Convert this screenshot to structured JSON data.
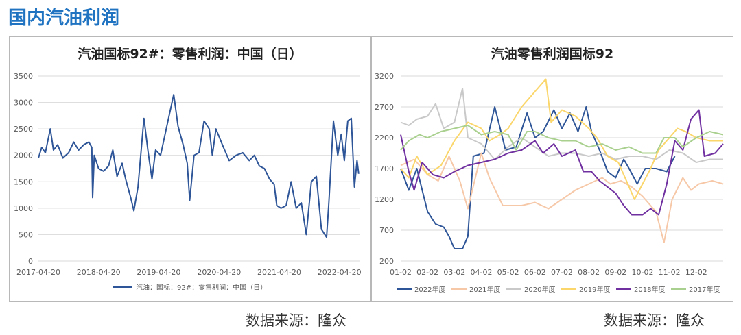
{
  "page": {
    "section_title": "国内汽油利润",
    "source_left": "数据来源：隆众",
    "source_right": "数据来源：隆众"
  },
  "chart_data": [
    {
      "type": "line",
      "title": "汽油国标92#：零售利润：中国（日）",
      "ylim": [
        0,
        3500
      ],
      "yticks": [
        "0",
        "500",
        "1000",
        "1500",
        "2000",
        "2500",
        "3000",
        "3500"
      ],
      "xticks": [
        "2017-04-20",
        "2018-04-20",
        "2019-04-20",
        "2020-04-20",
        "2021-04-20",
        "2022-04-20"
      ],
      "grid": true,
      "legend": "bottom",
      "series": [
        {
          "name": "汽油：国标：92#：零售利润：中国（日）",
          "color": "#2e5597",
          "points": [
            [
              "2017-04-20",
              1950
            ],
            [
              "2017-05-10",
              2150
            ],
            [
              "2017-06-01",
              2050
            ],
            [
              "2017-07-01",
              2500
            ],
            [
              "2017-07-20",
              2100
            ],
            [
              "2017-08-15",
              2200
            ],
            [
              "2017-09-15",
              1950
            ],
            [
              "2017-10-20",
              2050
            ],
            [
              "2017-11-20",
              2250
            ],
            [
              "2017-12-20",
              2100
            ],
            [
              "2018-01-20",
              2200
            ],
            [
              "2018-02-20",
              2250
            ],
            [
              "2018-03-10",
              2150
            ],
            [
              "2018-03-15",
              1200
            ],
            [
              "2018-03-25",
              2000
            ],
            [
              "2018-04-20",
              1750
            ],
            [
              "2018-05-20",
              1700
            ],
            [
              "2018-06-20",
              1800
            ],
            [
              "2018-07-15",
              2100
            ],
            [
              "2018-08-10",
              1600
            ],
            [
              "2018-09-10",
              1850
            ],
            [
              "2018-10-01",
              1550
            ],
            [
              "2018-11-01",
              1200
            ],
            [
              "2018-11-20",
              950
            ],
            [
              "2018-12-15",
              1400
            ],
            [
              "2019-01-20",
              2700
            ],
            [
              "2019-02-15",
              2050
            ],
            [
              "2019-03-10",
              1550
            ],
            [
              "2019-04-01",
              2100
            ],
            [
              "2019-05-01",
              2000
            ],
            [
              "2019-06-15",
              2650
            ],
            [
              "2019-07-20",
              3150
            ],
            [
              "2019-08-15",
              2550
            ],
            [
              "2019-09-15",
              2200
            ],
            [
              "2019-10-10",
              1850
            ],
            [
              "2019-10-25",
              1150
            ],
            [
              "2019-11-20",
              2000
            ],
            [
              "2019-12-20",
              2050
            ],
            [
              "2020-01-20",
              2650
            ],
            [
              "2020-02-20",
              2500
            ],
            [
              "2020-03-10",
              2000
            ],
            [
              "2020-04-01",
              2500
            ],
            [
              "2020-05-10",
              2200
            ],
            [
              "2020-06-20",
              1900
            ],
            [
              "2020-08-01",
              2000
            ],
            [
              "2020-09-10",
              2050
            ],
            [
              "2020-10-20",
              1900
            ],
            [
              "2020-11-20",
              2000
            ],
            [
              "2020-12-20",
              1800
            ],
            [
              "2021-01-20",
              1750
            ],
            [
              "2021-02-20",
              1550
            ],
            [
              "2021-03-20",
              1450
            ],
            [
              "2021-04-05",
              1050
            ],
            [
              "2021-05-01",
              1000
            ],
            [
              "2021-06-01",
              1050
            ],
            [
              "2021-07-01",
              1500
            ],
            [
              "2021-08-01",
              1000
            ],
            [
              "2021-09-01",
              1100
            ],
            [
              "2021-10-01",
              500
            ],
            [
              "2021-11-01",
              1500
            ],
            [
              "2021-12-01",
              1600
            ],
            [
              "2022-01-01",
              600
            ],
            [
              "2022-02-01",
              450
            ],
            [
              "2022-02-15",
              1100
            ],
            [
              "2022-03-15",
              2650
            ],
            [
              "2022-04-10",
              2000
            ],
            [
              "2022-05-01",
              2400
            ],
            [
              "2022-05-20",
              1900
            ],
            [
              "2022-06-10",
              2650
            ],
            [
              "2022-07-01",
              2700
            ],
            [
              "2022-07-20",
              1400
            ],
            [
              "2022-08-05",
              1900
            ],
            [
              "2022-08-15",
              1650
            ]
          ]
        }
      ]
    },
    {
      "type": "line",
      "title": "汽油零售利润国标92",
      "ylim": [
        200,
        3200
      ],
      "yticks": [
        "200",
        "700",
        "1200",
        "1700",
        "2200",
        "2700",
        "3200"
      ],
      "xticks": [
        "01-02",
        "02-02",
        "03-02",
        "04-02",
        "05-02",
        "06-02",
        "07-02",
        "08-02",
        "09-02",
        "10-02",
        "11-02",
        "12-02"
      ],
      "grid": true,
      "legend": "bottom",
      "series": [
        {
          "name": "2022年度",
          "color": "#2e5597",
          "values": [
            [
              1,
              1700
            ],
            [
              1.3,
              1350
            ],
            [
              1.6,
              1700
            ],
            [
              2,
              1000
            ],
            [
              2.3,
              800
            ],
            [
              2.6,
              750
            ],
            [
              2.8,
              600
            ],
            [
              3,
              400
            ],
            [
              3.3,
              400
            ],
            [
              3.5,
              600
            ],
            [
              3.7,
              1900
            ],
            [
              4.1,
              1950
            ],
            [
              4.5,
              2700
            ],
            [
              4.9,
              2000
            ],
            [
              5.3,
              2050
            ],
            [
              5.7,
              2600
            ],
            [
              6,
              2200
            ],
            [
              6.3,
              2300
            ],
            [
              6.7,
              2650
            ],
            [
              7,
              2350
            ],
            [
              7.3,
              2600
            ],
            [
              7.6,
              2300
            ],
            [
              7.9,
              2700
            ],
            [
              8.1,
              2300
            ],
            [
              8.4,
              2000
            ],
            [
              8.7,
              1650
            ],
            [
              9,
              1550
            ],
            [
              9.3,
              1850
            ],
            [
              9.5,
              1700
            ],
            [
              9.8,
              1450
            ],
            [
              10.1,
              1700
            ],
            [
              10.5,
              1700
            ],
            [
              10.9,
              1650
            ],
            [
              11.2,
              1900
            ]
          ]
        },
        {
          "name": "2021年度",
          "color": "#f6c8a8",
          "values": [
            [
              1,
              1750
            ],
            [
              1.5,
              1850
            ],
            [
              2,
              1600
            ],
            [
              2.4,
              1500
            ],
            [
              2.8,
              1900
            ],
            [
              3.2,
              1500
            ],
            [
              3.5,
              1050
            ],
            [
              4,
              1950
            ],
            [
              4.3,
              1550
            ],
            [
              4.8,
              1100
            ],
            [
              5.5,
              1100
            ],
            [
              6,
              1150
            ],
            [
              6.5,
              1050
            ],
            [
              7,
              1200
            ],
            [
              7.5,
              1350
            ],
            [
              8,
              1450
            ],
            [
              8.5,
              1550
            ],
            [
              8.8,
              1450
            ],
            [
              9.2,
              1500
            ],
            [
              9.6,
              1400
            ],
            [
              10,
              1250
            ],
            [
              10.5,
              1000
            ],
            [
              10.8,
              500
            ],
            [
              11.1,
              1200
            ],
            [
              11.5,
              1550
            ],
            [
              11.8,
              1350
            ],
            [
              12.1,
              1450
            ],
            [
              12.6,
              1500
            ],
            [
              13,
              1450
            ]
          ]
        },
        {
          "name": "2020年度",
          "color": "#c9c9c9",
          "values": [
            [
              1,
              2450
            ],
            [
              1.3,
              2400
            ],
            [
              1.6,
              2500
            ],
            [
              2,
              2550
            ],
            [
              2.3,
              2750
            ],
            [
              2.6,
              2350
            ],
            [
              3,
              2450
            ],
            [
              3.3,
              3000
            ],
            [
              3.5,
              2200
            ],
            [
              4,
              2100
            ],
            [
              4.5,
              1850
            ],
            [
              5,
              2050
            ],
            [
              5.5,
              2200
            ],
            [
              6,
              2050
            ],
            [
              6.5,
              1900
            ],
            [
              7,
              1950
            ],
            [
              7.5,
              1950
            ],
            [
              8,
              1900
            ],
            [
              8.5,
              1950
            ],
            [
              9,
              1850
            ],
            [
              9.5,
              1900
            ],
            [
              10,
              1900
            ],
            [
              10.5,
              1850
            ],
            [
              11,
              2000
            ],
            [
              11.5,
              1950
            ],
            [
              12,
              1800
            ],
            [
              12.5,
              1850
            ],
            [
              13,
              1850
            ]
          ]
        },
        {
          "name": "2019年度",
          "color": "#fad66b",
          "values": [
            [
              1,
              1700
            ],
            [
              1.3,
              1550
            ],
            [
              1.6,
              1900
            ],
            [
              2,
              1600
            ],
            [
              2.5,
              1750
            ],
            [
              3,
              2150
            ],
            [
              3.5,
              2450
            ],
            [
              4,
              2350
            ],
            [
              4.3,
              2150
            ],
            [
              4.7,
              2250
            ],
            [
              5,
              2350
            ],
            [
              5.5,
              2700
            ],
            [
              6,
              2950
            ],
            [
              6.4,
              3150
            ],
            [
              6.6,
              2450
            ],
            [
              7,
              2650
            ],
            [
              7.5,
              2550
            ],
            [
              8,
              2350
            ],
            [
              8.3,
              2200
            ],
            [
              8.7,
              1900
            ],
            [
              9.1,
              1800
            ],
            [
              9.4,
              1500
            ],
            [
              9.7,
              1200
            ],
            [
              10,
              1450
            ],
            [
              10.3,
              1700
            ],
            [
              10.6,
              2000
            ],
            [
              11,
              2200
            ],
            [
              11.3,
              2350
            ],
            [
              11.6,
              2300
            ],
            [
              12,
              2200
            ],
            [
              12.5,
              2150
            ],
            [
              13,
              2150
            ]
          ]
        },
        {
          "name": "2018年度",
          "color": "#7030a0",
          "values": [
            [
              1,
              2250
            ],
            [
              1.3,
              1650
            ],
            [
              1.5,
              1350
            ],
            [
              1.8,
              1800
            ],
            [
              2.2,
              1600
            ],
            [
              2.6,
              1550
            ],
            [
              3,
              1650
            ],
            [
              3.5,
              1750
            ],
            [
              4,
              1800
            ],
            [
              4.5,
              1850
            ],
            [
              5,
              1950
            ],
            [
              5.5,
              2000
            ],
            [
              6,
              2150
            ],
            [
              6.3,
              1950
            ],
            [
              6.7,
              2100
            ],
            [
              7,
              1900
            ],
            [
              7.5,
              2000
            ],
            [
              7.8,
              1650
            ],
            [
              8.1,
              1650
            ],
            [
              8.4,
              1500
            ],
            [
              8.7,
              1400
            ],
            [
              9,
              1300
            ],
            [
              9.3,
              1100
            ],
            [
              9.6,
              950
            ],
            [
              10,
              950
            ],
            [
              10.3,
              1050
            ],
            [
              10.6,
              950
            ],
            [
              10.9,
              1450
            ],
            [
              11.2,
              2150
            ],
            [
              11.5,
              2000
            ],
            [
              11.8,
              2500
            ],
            [
              12.1,
              2650
            ],
            [
              12.3,
              1900
            ],
            [
              12.7,
              1950
            ],
            [
              13,
              2100
            ]
          ]
        },
        {
          "name": "2017年度",
          "color": "#a9d08e",
          "values": [
            [
              1,
              2000
            ],
            [
              1.3,
              2150
            ],
            [
              1.7,
              2250
            ],
            [
              2,
              2200
            ],
            [
              2.5,
              2300
            ],
            [
              3,
              2350
            ],
            [
              3.5,
              2400
            ],
            [
              4,
              2250
            ],
            [
              4.5,
              2300
            ],
            [
              5,
              2250
            ],
            [
              5.3,
              2000
            ],
            [
              5.7,
              2300
            ],
            [
              6,
              2300
            ],
            [
              6.5,
              2200
            ],
            [
              7,
              2150
            ],
            [
              7.5,
              2150
            ],
            [
              8,
              2050
            ],
            [
              8.5,
              2100
            ],
            [
              9,
              2000
            ],
            [
              9.5,
              2050
            ],
            [
              10,
              1950
            ],
            [
              10.5,
              1950
            ],
            [
              10.8,
              2200
            ],
            [
              11.2,
              2200
            ],
            [
              11.5,
              2050
            ],
            [
              12,
              2200
            ],
            [
              12.5,
              2300
            ],
            [
              13,
              2250
            ]
          ]
        }
      ]
    }
  ]
}
